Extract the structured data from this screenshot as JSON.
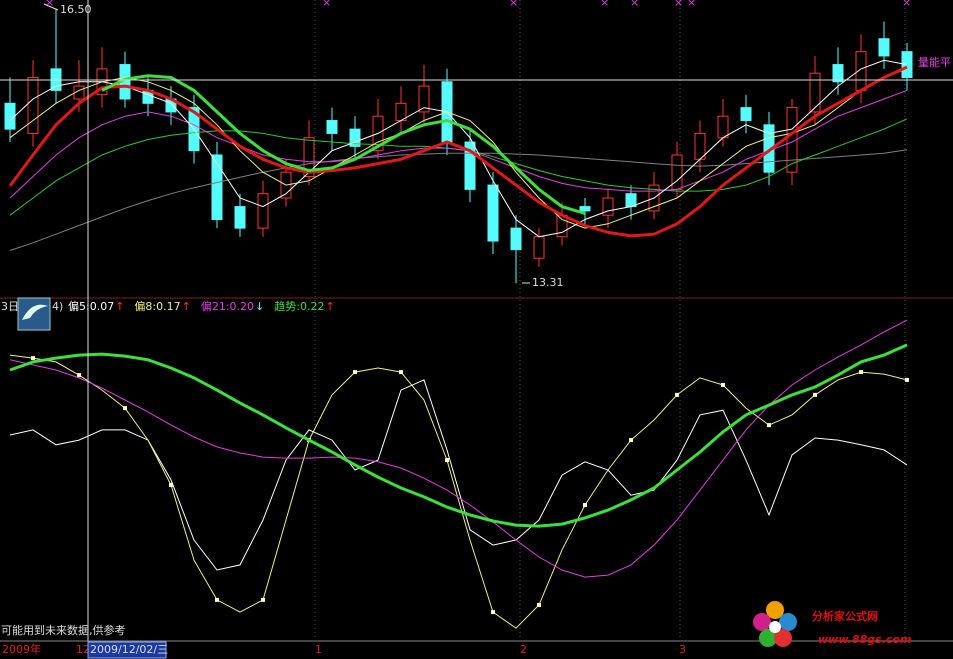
{
  "chart_data": [
    {
      "type": "candlestick",
      "open": [
        15.4,
        15.05,
        15.8,
        15.45,
        15.5,
        15.85,
        15.55,
        15.45,
        15.35,
        14.8,
        14.2,
        13.95,
        14.3,
        14.55,
        15.2,
        15.1,
        14.85,
        15.2,
        15.3,
        15.65,
        14.95,
        14.45,
        13.95,
        13.6,
        13.85,
        14.2,
        14.1,
        14.35,
        14.15,
        14.4,
        14.75,
        15.0,
        15.35,
        15.15,
        14.6,
        15.3,
        15.85,
        15.55,
        16.15,
        16.0
      ],
      "high": [
        15.7,
        15.9,
        16.5,
        15.9,
        16.05,
        16.0,
        15.7,
        15.6,
        15.5,
        14.95,
        14.35,
        14.5,
        14.75,
        15.2,
        15.35,
        15.25,
        15.45,
        15.6,
        15.85,
        15.8,
        15.1,
        14.6,
        14.1,
        13.95,
        14.25,
        14.3,
        14.4,
        14.45,
        14.6,
        14.95,
        15.2,
        15.45,
        15.5,
        15.3,
        15.45,
        15.95,
        16.05,
        16.2,
        16.35,
        16.1
      ],
      "low": [
        14.95,
        14.9,
        15.4,
        15.3,
        15.35,
        15.35,
        15.25,
        15.15,
        14.7,
        13.95,
        13.85,
        13.85,
        14.2,
        14.45,
        14.85,
        14.75,
        14.75,
        15.05,
        15.15,
        14.8,
        14.25,
        13.65,
        13.31,
        13.5,
        13.75,
        14.0,
        13.95,
        14.05,
        14.05,
        14.3,
        14.6,
        14.9,
        15.05,
        14.45,
        14.45,
        15.15,
        15.5,
        15.4,
        15.8,
        15.55
      ],
      "close": [
        15.1,
        15.7,
        15.55,
        15.6,
        15.8,
        15.45,
        15.4,
        15.3,
        14.85,
        14.05,
        13.95,
        14.35,
        14.6,
        15.0,
        15.05,
        14.9,
        15.25,
        15.4,
        15.6,
        14.95,
        14.4,
        13.8,
        13.7,
        13.85,
        14.1,
        14.15,
        14.3,
        14.2,
        14.45,
        14.8,
        15.05,
        15.25,
        15.2,
        14.6,
        15.35,
        15.75,
        15.65,
        16.0,
        15.95,
        15.7
      ],
      "up_color": "#ff3232",
      "down_color": "#54fcfc",
      "series": [
        {
          "color": "#7f7f7f",
          "width": 1,
          "values": [
            13.69,
            13.78,
            13.88,
            13.98,
            14.08,
            14.18,
            14.27,
            14.35,
            14.42,
            14.48,
            14.54,
            14.6,
            14.65,
            14.7,
            14.73,
            14.76,
            14.78,
            14.8,
            14.81,
            14.82,
            14.82,
            14.82,
            14.81,
            14.8,
            14.78,
            14.76,
            14.74,
            14.72,
            14.7,
            14.68,
            14.67,
            14.68,
            14.7,
            14.72,
            14.74,
            14.76,
            14.78,
            14.8,
            14.82,
            14.86
          ]
        },
        {
          "color": "#2ec82e",
          "width": 1,
          "values": [
            14.1,
            14.3,
            14.5,
            14.65,
            14.8,
            14.9,
            14.98,
            15.03,
            15.06,
            15.08,
            15.08,
            15.05,
            15.0,
            14.97,
            14.95,
            14.93,
            14.92,
            14.9,
            14.9,
            14.88,
            14.85,
            14.78,
            14.7,
            14.62,
            14.55,
            14.5,
            14.45,
            14.42,
            14.4,
            14.38,
            14.38,
            14.4,
            14.45,
            14.55,
            14.7,
            14.8,
            14.9,
            15.0,
            15.1,
            15.22
          ]
        },
        {
          "color": "#e040e0",
          "width": 1,
          "values": [
            14.3,
            14.55,
            14.8,
            15.0,
            15.15,
            15.25,
            15.3,
            15.25,
            15.15,
            15.0,
            14.9,
            14.8,
            14.75,
            14.72,
            14.72,
            14.75,
            14.8,
            14.85,
            14.88,
            14.88,
            14.85,
            14.75,
            14.65,
            14.55,
            14.47,
            14.42,
            14.4,
            14.38,
            14.38,
            14.4,
            14.5,
            14.6,
            14.75,
            14.85,
            14.95,
            15.1,
            15.25,
            15.35,
            15.45,
            15.55
          ]
        },
        {
          "color": "#f0f080",
          "width": 1,
          "values": [
            15.0,
            15.2,
            15.4,
            15.55,
            15.65,
            15.7,
            15.65,
            15.55,
            15.4,
            15.15,
            14.85,
            14.6,
            14.45,
            14.5,
            14.65,
            14.8,
            14.95,
            15.05,
            15.2,
            15.3,
            15.2,
            14.95,
            14.6,
            14.3,
            14.05,
            13.95,
            14.0,
            14.1,
            14.2,
            14.3,
            14.5,
            14.7,
            14.9,
            15.0,
            15.05,
            15.15,
            15.35,
            15.55,
            15.7,
            15.8
          ]
        },
        {
          "color": "#ffffff",
          "width": 1,
          "values": [
            15.2,
            15.45,
            15.6,
            15.65,
            15.65,
            15.6,
            15.5,
            15.4,
            15.1,
            14.7,
            14.3,
            14.2,
            14.35,
            14.6,
            14.85,
            14.95,
            15.05,
            15.2,
            15.35,
            15.3,
            15.0,
            14.5,
            14.05,
            13.85,
            13.9,
            14.05,
            14.15,
            14.2,
            14.3,
            14.5,
            14.75,
            15.0,
            15.15,
            15.05,
            15.1,
            15.35,
            15.6,
            15.8,
            15.9,
            15.85
          ]
        },
        {
          "color": "#e01818",
          "width": 3,
          "values": [
            14.44,
            14.8,
            15.15,
            15.4,
            15.58,
            15.6,
            15.55,
            15.45,
            15.3,
            15.1,
            14.9,
            14.75,
            14.65,
            14.6,
            14.62,
            14.65,
            14.7,
            14.75,
            14.85,
            14.95,
            14.85,
            14.65,
            14.45,
            14.25,
            14.1,
            13.98,
            13.9,
            13.86,
            13.88,
            14.0,
            14.2,
            14.45,
            14.65,
            14.85,
            15.05,
            15.25,
            15.4,
            15.55,
            15.7,
            15.82
          ]
        },
        {
          "color": "#3ce03c",
          "width": 3,
          "values": [
            null,
            null,
            null,
            null,
            15.55,
            15.68,
            15.72,
            15.7,
            15.55,
            15.3,
            15.05,
            14.85,
            14.7,
            14.62,
            14.65,
            14.75,
            14.9,
            15.05,
            15.15,
            15.2,
            15.1,
            14.9,
            14.65,
            14.4,
            14.2,
            14.12,
            null,
            null,
            null,
            null,
            null,
            null,
            null,
            null,
            null,
            null,
            null,
            null,
            null,
            null
          ]
        }
      ],
      "ylim": [
        13.15,
        16.6
      ],
      "annotations": [
        "16.50",
        "13.31",
        "量能平"
      ]
    },
    {
      "type": "line",
      "ylim": [
        0,
        100
      ],
      "series": [
        {
          "name": "偏5:0.07",
          "arrow": "↑",
          "color": "#ffffff",
          "width": 1,
          "values": [
            60.3,
            61.8,
            57.4,
            58.8,
            61.8,
            61.8,
            58.8,
            47.1,
            29.4,
            20.6,
            22.1,
            35.3,
            52.9,
            61.8,
            58.8,
            50.0,
            52.9,
            73.5,
            76.5,
            55.9,
            32.4,
            27.9,
            29.4,
            35.3,
            48.5,
            52.4,
            50.0,
            42.6,
            44.1,
            52.9,
            66.2,
            67.6,
            52.9,
            36.8,
            54.4,
            59.4,
            58.8,
            57.4,
            55.9,
            51.5
          ]
        },
        {
          "name": "偏8:0.17",
          "arrow": "↑",
          "color": "#f0f080",
          "width": 1,
          "markers": true,
          "values": [
            83.8,
            82.9,
            81.8,
            77.9,
            73.5,
            68.2,
            58.8,
            45.6,
            23.5,
            11.8,
            8.2,
            11.8,
            35.3,
            58.8,
            72.1,
            78.8,
            80.0,
            78.8,
            70.6,
            52.9,
            29.4,
            8.2,
            3.5,
            10.3,
            26.5,
            39.7,
            50.0,
            58.8,
            64.7,
            72.1,
            77.1,
            75.0,
            68.2,
            63.2,
            66.2,
            72.1,
            76.5,
            78.8,
            78.2,
            76.5
          ]
        },
        {
          "name": "偏21:0.20",
          "arrow": "↓",
          "color": "#e040e0",
          "width": 1,
          "values": [
            82.4,
            80.9,
            79.4,
            77.1,
            74.1,
            70.6,
            67.1,
            63.2,
            59.7,
            56.8,
            55.0,
            53.8,
            53.5,
            53.5,
            53.8,
            53.5,
            52.4,
            50.6,
            47.6,
            44.1,
            39.7,
            34.7,
            29.4,
            24.4,
            20.6,
            18.5,
            19.1,
            22.1,
            27.9,
            35.3,
            44.1,
            52.9,
            61.8,
            69.1,
            75.0,
            79.4,
            83.2,
            86.8,
            90.6,
            94.1
          ]
        },
        {
          "name": "趋势:0.22",
          "arrow": "↑",
          "color": "#3ce03c",
          "width": 3,
          "values": [
            79.4,
            81.8,
            82.9,
            83.8,
            84.1,
            83.5,
            82.4,
            80.0,
            77.1,
            73.5,
            69.7,
            66.2,
            62.4,
            58.8,
            55.3,
            51.5,
            47.9,
            44.7,
            42.1,
            39.1,
            36.8,
            35.0,
            33.8,
            33.5,
            34.1,
            35.9,
            38.2,
            41.2,
            44.7,
            50.0,
            55.3,
            61.2,
            66.2,
            69.1,
            72.1,
            74.4,
            77.9,
            81.8,
            83.8,
            86.8
          ]
        }
      ]
    }
  ],
  "header": {
    "period": "3日",
    "param": "4)"
  },
  "footer": {
    "note": "可能用到未来数据,供参考",
    "year": "2009年",
    "dates": [
      "12",
      "2009/12/02/三",
      "1",
      "2",
      "3"
    ],
    "site": "分析家公式网",
    "url": "www.88gs.com"
  }
}
